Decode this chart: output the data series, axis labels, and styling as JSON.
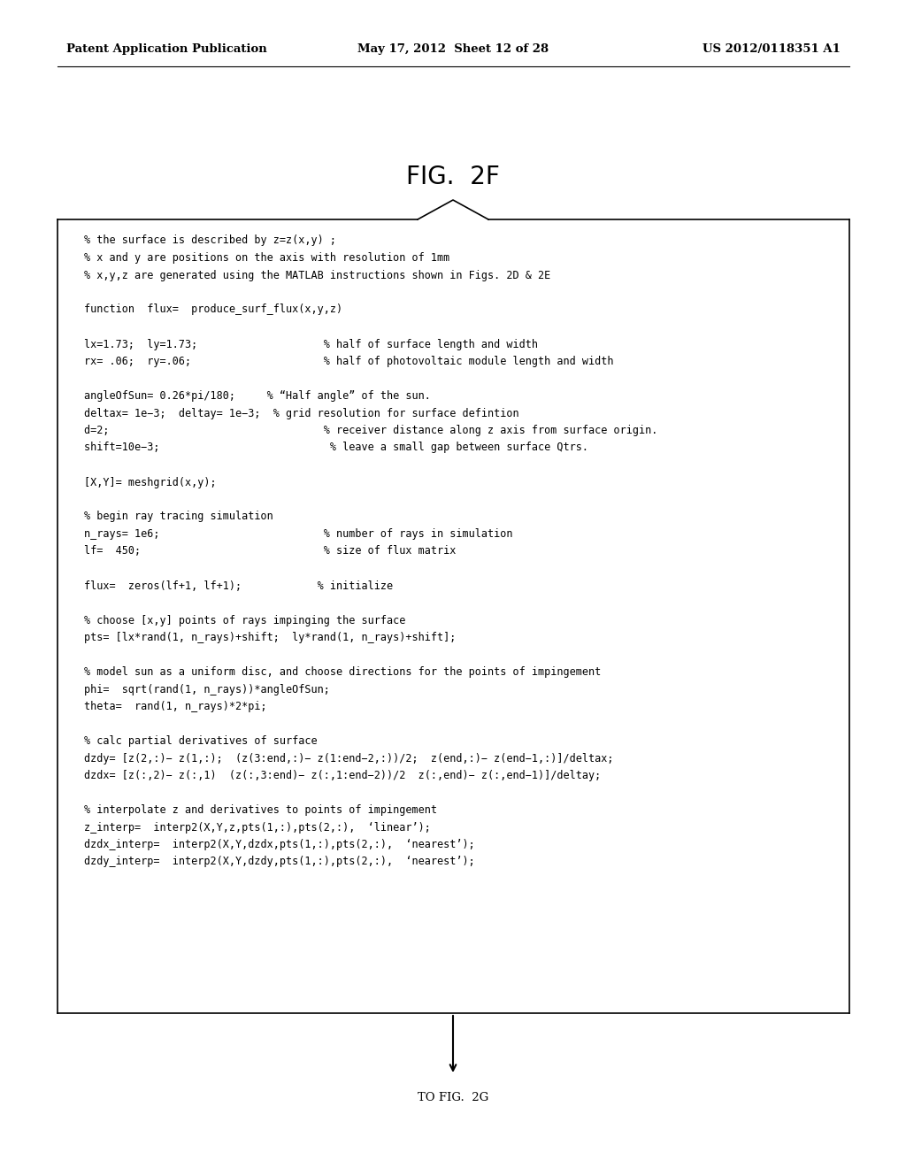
{
  "header_left": "Patent Application Publication",
  "header_mid": "May 17, 2012  Sheet 12 of 28",
  "header_right": "US 2012/0118351 A1",
  "title": "FIG.  2F",
  "footer": "TO FIG.  2G",
  "code_lines": [
    "% the surface is described by z=z(x,y) ;",
    "% x and y are positions on the axis with resolution of 1mm",
    "% x,y,z are generated using the MATLAB instructions shown in Figs. 2D & 2E",
    "",
    "function  flux=  produce_surf_flux(x,y,z)",
    "",
    "lx=1.73;  ly=1.73;                    % half of surface length and width",
    "rx= .06;  ry=.06;                     % half of photovoltaic module length and width",
    "",
    "angleOfSun= 0.26*pi/180;     % “Half angle” of the sun.",
    "deltax= 1e−3;  deltay= 1e−3;  % grid resolution for surface defintion",
    "d=2;                                  % receiver distance along z axis from surface origin.",
    "shift=10e−3;                           % leave a small gap between surface Qtrs.",
    "",
    "[X,Y]= meshgrid(x,y);",
    "",
    "% begin ray tracing simulation",
    "n_rays= 1e6;                          % number of rays in simulation",
    "lf=  450;                             % size of flux matrix",
    "",
    "flux=  zeros(lf+1, lf+1);            % initialize",
    "",
    "% choose [x,y] points of rays impinging the surface",
    "pts= [lx*rand(1, n_rays)+shift;  ly*rand(1, n_rays)+shift];",
    "",
    "% model sun as a uniform disc, and choose directions for the points of impingement",
    "phi=  sqrt(rand(1, n_rays))*angleOfSun;",
    "theta=  rand(1, n_rays)*2*pi;",
    "",
    "% calc partial derivatives of surface",
    "dzdy= [z(2,:)− z(1,:);  (z(3:end,:)− z(1:end−2,:))/2;  z(end,:)− z(end−1,:)]/deltax;",
    "dzdx= [z(:,2)− z(:,1)  (z(:,3:end)− z(:,1:end−2))/2  z(:,end)− z(:,end−1)]/deltay;",
    "",
    "% interpolate z and derivatives to points of impingement",
    "z_interp=  interp2(X,Y,z,pts(1,:),pts(2,:),  ‘linear’);",
    "dzdx_interp=  interp2(X,Y,dzdx,pts(1,:),pts(2,:),  ‘nearest’);",
    "dzdy_interp=  interp2(X,Y,dzdy,pts(1,:),pts(2,:),  ‘nearest’);"
  ],
  "bg_color": "#ffffff",
  "text_color": "#000000",
  "header_font_size": 9.5,
  "title_font_size": 20,
  "code_font_size": 8.5,
  "footer_font_size": 9.5
}
